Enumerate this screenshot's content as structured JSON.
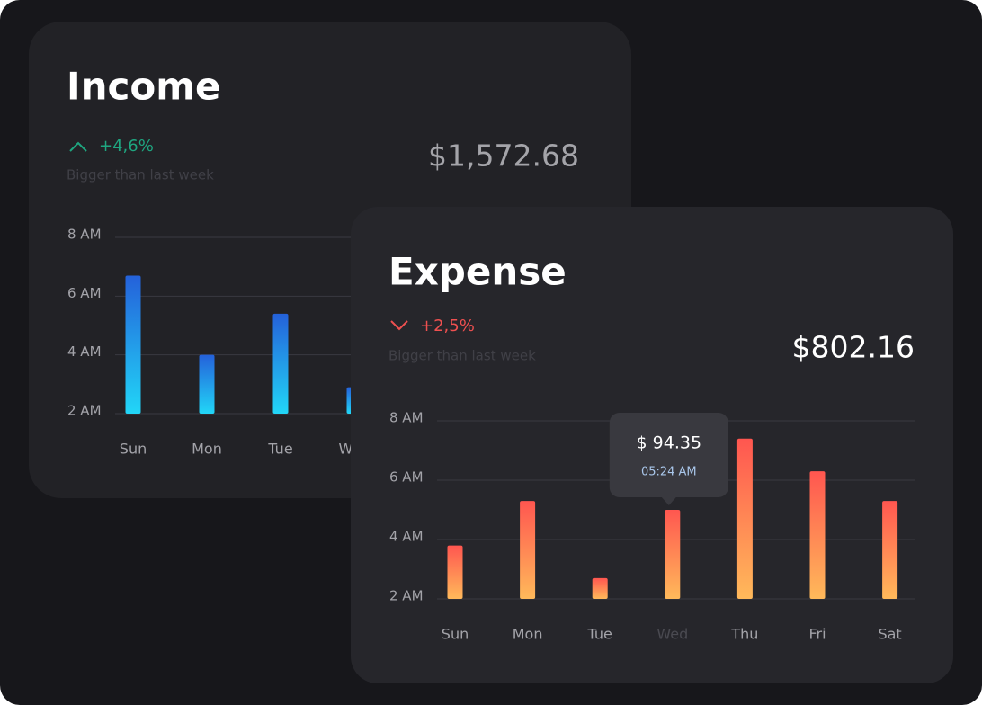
{
  "chart_data": [
    {
      "type": "bar",
      "title": "Income",
      "change": "+4,6%",
      "note": "Bigger than last week",
      "total": "$1,572.68",
      "categories": [
        "Sun",
        "Mon",
        "Tue",
        "Wed"
      ],
      "values": [
        6.7,
        4.0,
        5.4,
        2.9
      ],
      "colors": [
        "#2461da",
        "#22d6f7"
      ],
      "ylim": [
        2,
        8
      ],
      "yticks": [
        {
          "value": 8,
          "label": "8 AM"
        },
        {
          "value": 6,
          "label": "6 AM"
        },
        {
          "value": 4,
          "label": "4 AM"
        },
        {
          "value": 2,
          "label": "2 AM"
        }
      ],
      "grid": true
    },
    {
      "type": "bar",
      "title": "Expense",
      "change": "+2,5%",
      "note": "Bigger than last week",
      "total": "$802.16",
      "categories": [
        "Sun",
        "Mon",
        "Tue",
        "Wed",
        "Thu",
        "Fri",
        "Sat"
      ],
      "values": [
        3.8,
        5.3,
        2.7,
        5.0,
        7.4,
        6.3,
        5.3
      ],
      "colors": [
        "#ff5650",
        "#ffb95a"
      ],
      "ylim": [
        2,
        8
      ],
      "yticks": [
        {
          "value": 8,
          "label": "8 AM"
        },
        {
          "value": 6,
          "label": "6 AM"
        },
        {
          "value": 4,
          "label": "4 AM"
        },
        {
          "value": 2,
          "label": "2 AM"
        }
      ],
      "grid": true,
      "tooltip": {
        "category": "Wed",
        "value": "$ 94.35",
        "time": "05:24 AM"
      }
    }
  ]
}
